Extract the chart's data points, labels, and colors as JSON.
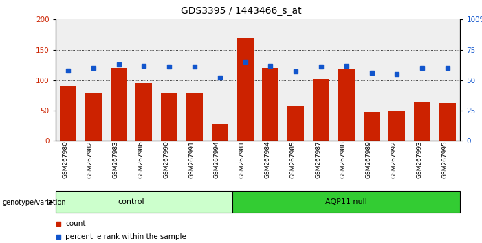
{
  "title": "GDS3395 / 1443466_s_at",
  "samples": [
    "GSM267980",
    "GSM267982",
    "GSM267983",
    "GSM267986",
    "GSM267990",
    "GSM267991",
    "GSM267994",
    "GSM267981",
    "GSM267984",
    "GSM267985",
    "GSM267987",
    "GSM267988",
    "GSM267989",
    "GSM267992",
    "GSM267993",
    "GSM267995"
  ],
  "counts": [
    90,
    80,
    120,
    95,
    80,
    78,
    28,
    170,
    120,
    58,
    102,
    118,
    48,
    50,
    65,
    63
  ],
  "percentiles": [
    58,
    60,
    63,
    62,
    61,
    61,
    52,
    65,
    62,
    57,
    61,
    62,
    56,
    55,
    60,
    60
  ],
  "bar_color": "#cc2200",
  "dot_color": "#1155cc",
  "control_count": 7,
  "control_label": "control",
  "treatment_label": "AQP11 null",
  "control_bg": "#ccffcc",
  "treatment_bg": "#33cc33",
  "ylim_left": [
    0,
    200
  ],
  "ylim_right": [
    0,
    100
  ],
  "yticks_left": [
    0,
    50,
    100,
    150,
    200
  ],
  "yticks_right": [
    0,
    25,
    50,
    75,
    100
  ],
  "legend_count": "count",
  "legend_pct": "percentile rank within the sample",
  "genotype_label": "genotype/variation",
  "title_fontsize": 10,
  "tick_fontsize": 7.5,
  "sample_fontsize": 6.5
}
